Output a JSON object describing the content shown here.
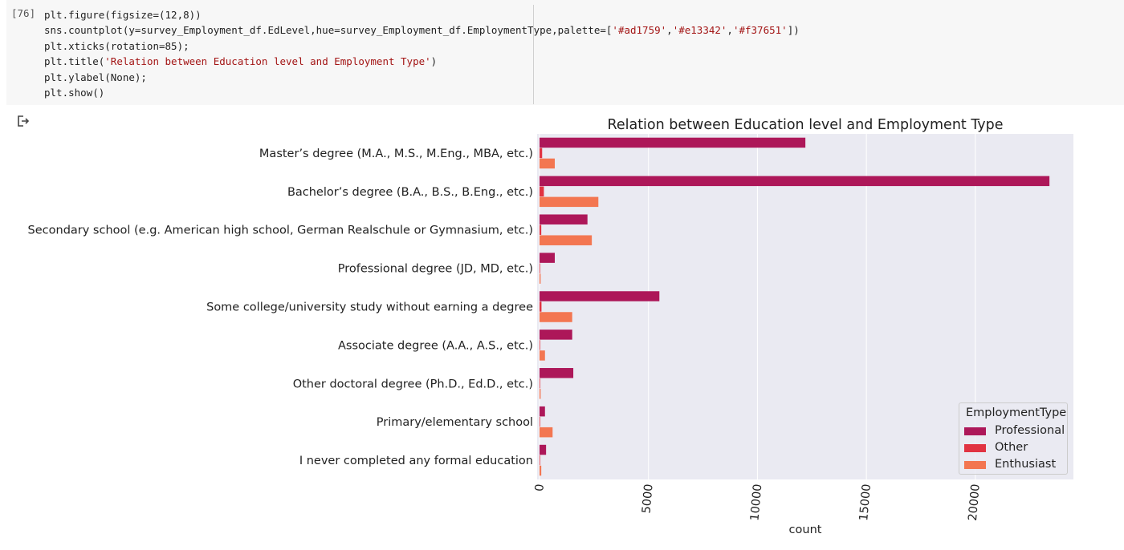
{
  "cell": {
    "execution_count": "[76]",
    "code_lines": [
      [
        {
          "t": "plt.figure(figsize=(12,8))"
        }
      ],
      [
        {
          "t": "sns.countplot(y=survey_Employment_df.EdLevel,hue=survey_Employment_df.EmploymentType,palette=["
        },
        {
          "t": "'#ad1759'",
          "s": 1
        },
        {
          "t": ","
        },
        {
          "t": "'#e13342'",
          "s": 1
        },
        {
          "t": ","
        },
        {
          "t": "'#f37651'",
          "s": 1
        },
        {
          "t": "])"
        }
      ],
      [
        {
          "t": "plt.xticks(rotation=85);"
        }
      ],
      [
        {
          "t": "plt.title("
        },
        {
          "t": "'Relation between Education level and Employment Type'",
          "s": 1
        },
        {
          "t": ")"
        }
      ],
      [
        {
          "t": "plt.ylabel(None);"
        }
      ],
      [
        {
          "t": "plt.show()"
        }
      ]
    ]
  },
  "output": {
    "icon": "output-arrow-icon"
  },
  "chart_data": {
    "type": "bar",
    "orientation": "horizontal",
    "title": "Relation between Education level and Employment Type",
    "xlabel": "count",
    "ylabel": "",
    "xlim": [
      0,
      24500
    ],
    "xticks": [
      0,
      5000,
      10000,
      15000,
      20000
    ],
    "xtick_rotation": 85,
    "grid": true,
    "background": "#eaeaf2",
    "categories": [
      "Master’s degree (M.A., M.S., M.Eng., MBA, etc.)",
      "Bachelor’s degree (B.A., B.S., B.Eng., etc.)",
      "Secondary school (e.g. American high school, German Realschule or Gymnasium, etc.)",
      "Professional degree (JD, MD, etc.)",
      "Some college/university study without earning a degree",
      "Associate degree (A.A., A.S., etc.)",
      "Other doctoral degree (Ph.D., Ed.D., etc.)",
      "Primary/elementary school",
      "I never completed any formal education"
    ],
    "series": [
      {
        "name": "Professional",
        "color": "#ad1759",
        "values": [
          12200,
          23400,
          2200,
          700,
          5500,
          1500,
          1550,
          250,
          300
        ]
      },
      {
        "name": "Other",
        "color": "#e13342",
        "values": [
          120,
          200,
          80,
          20,
          90,
          25,
          25,
          10,
          10
        ]
      },
      {
        "name": "Enthusiast",
        "color": "#f37651",
        "values": [
          700,
          2700,
          2400,
          50,
          1500,
          250,
          50,
          600,
          80
        ]
      }
    ],
    "legend": {
      "title": "EmploymentType",
      "position": "lower-right"
    }
  }
}
